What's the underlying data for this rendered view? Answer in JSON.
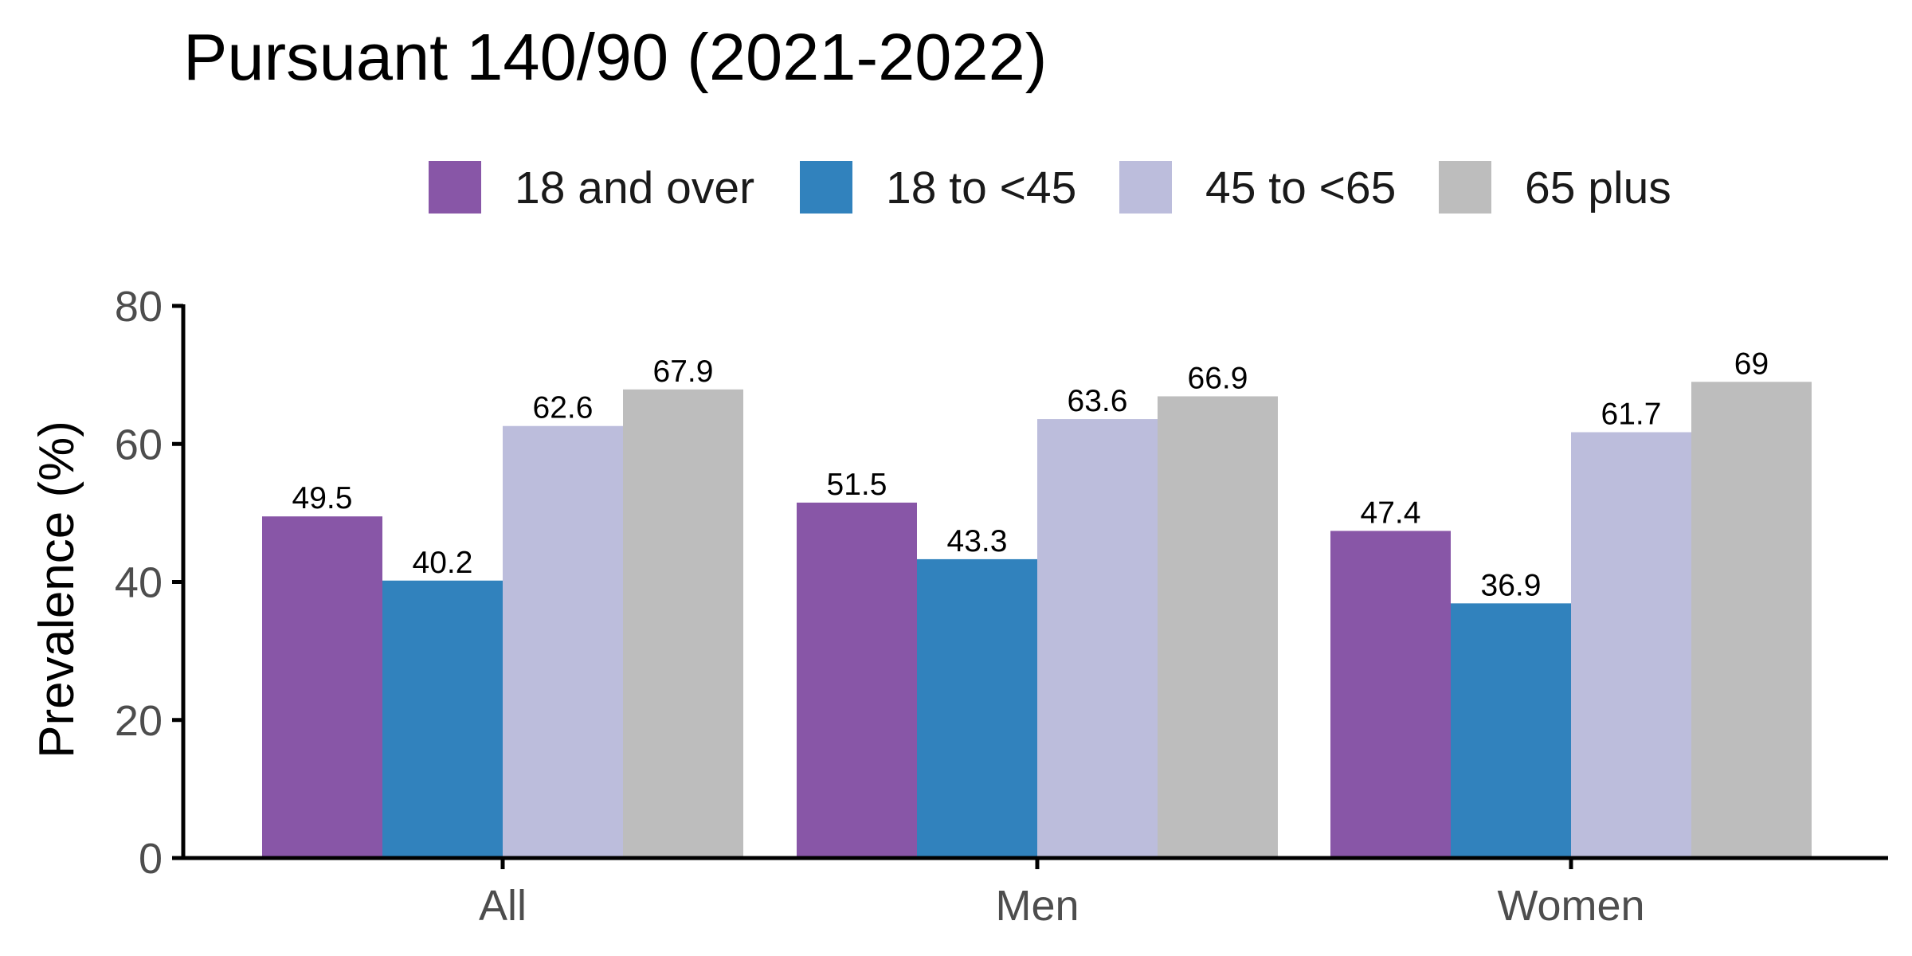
{
  "chart_data": {
    "type": "bar",
    "title": "Pursuant 140/90 (2021-2022)",
    "xlabel": "",
    "ylabel": "Prevalence (%)",
    "categories": [
      "All",
      "Men",
      "Women"
    ],
    "series": [
      {
        "name": "18 and over",
        "color": "#8856A7",
        "values": [
          49.5,
          51.5,
          47.4
        ],
        "labels": [
          "49.5",
          "51.5",
          "47.4"
        ]
      },
      {
        "name": "18 to <45",
        "color": "#3182BD",
        "values": [
          40.2,
          43.3,
          36.9
        ],
        "labels": [
          "40.2",
          "43.3",
          "36.9"
        ]
      },
      {
        "name": "45 to <65",
        "color": "#BCBDDC",
        "values": [
          62.6,
          63.6,
          61.7
        ],
        "labels": [
          "62.6",
          "63.6",
          "61.7"
        ]
      },
      {
        "name": "65 plus",
        "color": "#BDBDBD",
        "values": [
          67.9,
          66.9,
          69
        ],
        "labels": [
          "67.9",
          "66.9",
          "69"
        ]
      }
    ],
    "ylim": [
      0,
      80
    ],
    "yticks": [
      0,
      20,
      40,
      60,
      80
    ],
    "ytick_labels": [
      "0",
      "20",
      "40",
      "60",
      "80"
    ],
    "legend_position": "top",
    "grid": false
  }
}
